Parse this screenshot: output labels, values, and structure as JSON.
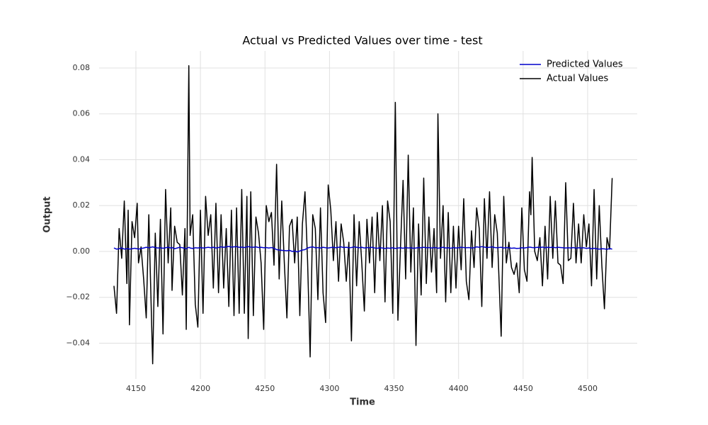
{
  "chart_data": {
    "type": "line",
    "title": "Actual vs Predicted Values over time - test",
    "xlabel": "Time",
    "ylabel": "Output",
    "x": [
      4133,
      4135,
      4137,
      4139,
      4141,
      4143,
      4144,
      4145,
      4147,
      4149,
      4151,
      4152,
      4154,
      4156,
      4158,
      4160,
      4163,
      4165,
      4167,
      4169,
      4171,
      4173,
      4175,
      4177,
      4178,
      4180,
      4182,
      4184,
      4186,
      4188,
      4189,
      4191,
      4192,
      4194,
      4196,
      4198,
      4200,
      4202,
      4204,
      4206,
      4208,
      4210,
      4212,
      4214,
      4216,
      4218,
      4220,
      4222,
      4224,
      4226,
      4228,
      4230,
      4232,
      4234,
      4236,
      4237,
      4239,
      4241,
      4243,
      4245,
      4247,
      4249,
      4251,
      4253,
      4255,
      4257,
      4259,
      4261,
      4263,
      4265,
      4267,
      4269,
      4271,
      4273,
      4275,
      4277,
      4279,
      4281,
      4283,
      4285,
      4287,
      4289,
      4291,
      4293,
      4295,
      4297,
      4299,
      4301,
      4303,
      4305,
      4307,
      4309,
      4311,
      4313,
      4315,
      4317,
      4319,
      4321,
      4323,
      4325,
      4327,
      4329,
      4331,
      4333,
      4335,
      4337,
      4339,
      4341,
      4343,
      4345,
      4347,
      4349,
      4351,
      4353,
      4355,
      4357,
      4359,
      4361,
      4363,
      4365,
      4367,
      4369,
      4371,
      4373,
      4375,
      4377,
      4379,
      4381,
      4383,
      4384,
      4386,
      4388,
      4390,
      4392,
      4394,
      4396,
      4398,
      4400,
      4402,
      4404,
      4406,
      4408,
      4410,
      4412,
      4414,
      4416,
      4418,
      4420,
      4422,
      4424,
      4426,
      4428,
      4430,
      4433,
      4435,
      4437,
      4439,
      4441,
      4443,
      4445,
      4447,
      4449,
      4451,
      4453,
      4455,
      4456,
      4457,
      4459,
      4461,
      4463,
      4465,
      4467,
      4469,
      4471,
      4473,
      4475,
      4477,
      4479,
      4481,
      4483,
      4485,
      4487,
      4489,
      4491,
      4493,
      4495,
      4497,
      4499,
      4501,
      4503,
      4505,
      4507,
      4509,
      4511,
      4513,
      4515,
      4517,
      4519
    ],
    "series": [
      {
        "name": "Predicted Values",
        "color": "#0000cc",
        "values": [
          0.0015,
          0.001,
          0.0012,
          0.0015,
          0.001,
          0.0012,
          0.0013,
          0.001,
          0.0012,
          0.0014,
          0.0012,
          0.001,
          0.0013,
          0.0015,
          0.0018,
          0.0016,
          0.002,
          0.0017,
          0.0015,
          0.0016,
          0.0014,
          0.0016,
          0.0018,
          0.0015,
          0.0017,
          0.0012,
          0.0015,
          0.0018,
          0.0016,
          0.0014,
          0.0012,
          0.0018,
          0.0015,
          0.0013,
          0.0016,
          0.0015,
          0.0017,
          0.0015,
          0.0016,
          0.0018,
          0.0016,
          0.0018,
          0.0015,
          0.0017,
          0.002,
          0.0018,
          0.002,
          0.0022,
          0.0019,
          0.002,
          0.0021,
          0.0018,
          0.0019,
          0.0017,
          0.002,
          0.0021,
          0.0019,
          0.0018,
          0.002,
          0.0017,
          0.0018,
          0.0016,
          0.0017,
          0.0015,
          0.0017,
          0.0014,
          0.0008,
          0.0006,
          0.0005,
          0.0004,
          0.0003,
          0.0005,
          0,
          0.0002,
          -0.0002,
          0.0002,
          0.0006,
          0.0008,
          0.0015,
          0.0018,
          0.002,
          0.0016,
          0.0017,
          0.0015,
          0.0018,
          0.0016,
          0.0015,
          0.0017,
          0.0018,
          0.0016,
          0.0018,
          0.002,
          0.0017,
          0.0018,
          0.0016,
          0.0017,
          0.002,
          0.0018,
          0.0016,
          0.0018,
          0.0015,
          0.0017,
          0.0016,
          0.0018,
          0.0015,
          0.0014,
          0.0016,
          0.0015,
          0.0013,
          0.0015,
          0.0014,
          0.0016,
          0.0013,
          0.0015,
          0.0016,
          0.0014,
          0.0017,
          0.0015,
          0.0016,
          0.0014,
          0.0015,
          0.0017,
          0.0016,
          0.0018,
          0.0016,
          0.0017,
          0.0015,
          0.0017,
          0.0016,
          0.0014,
          0.0016,
          0.0018,
          0.0015,
          0.0016,
          0.0014,
          0.0017,
          0.0015,
          0.0016,
          0.0018,
          0.0017,
          0.0016,
          0.0017,
          0.0015,
          0.0016,
          0.002,
          0.0018,
          0.0021,
          0.0019,
          0.0017,
          0.0018,
          0.002,
          0.0017,
          0.0016,
          0.0018,
          0.0015,
          0.0017,
          0.0016,
          0.0014,
          0.0015,
          0.0013,
          0.0014,
          0.0016,
          0.0015,
          0.0017,
          0.0019,
          0.0018,
          0.0017,
          0.0016,
          0.0018,
          0.0017,
          0.0019,
          0.0016,
          0.0018,
          0.0017,
          0.0019,
          0.0016,
          0.0018,
          0.0017,
          0.0016,
          0.0015,
          0.0016,
          0.0015,
          0.0017,
          0.0014,
          0.0016,
          0.0015,
          0.0016,
          0.0013,
          0.0015,
          0.0012,
          0.0014,
          0.0012,
          0.001,
          0.0012,
          0.0011,
          0.0009,
          0.0013,
          0.001
        ]
      },
      {
        "name": "Actual Values",
        "color": "#000000",
        "values": [
          -0.015,
          -0.027,
          0.01,
          -0.003,
          0.022,
          -0.014,
          0.018,
          -0.032,
          0.013,
          0.006,
          0.021,
          -0.005,
          0.002,
          -0.012,
          -0.029,
          0.016,
          -0.049,
          0.008,
          -0.024,
          0.014,
          -0.036,
          0.027,
          -0.005,
          0.019,
          -0.017,
          0.011,
          0.004,
          0.003,
          -0.019,
          0.01,
          -0.034,
          0.081,
          0.007,
          0.016,
          -0.023,
          -0.033,
          0.018,
          -0.027,
          0.024,
          0.007,
          0.016,
          -0.016,
          0.021,
          -0.018,
          0.016,
          -0.016,
          0.01,
          -0.024,
          0.018,
          -0.028,
          0.019,
          -0.027,
          0.027,
          -0.027,
          0.024,
          -0.038,
          0.026,
          -0.028,
          0.015,
          0.008,
          -0.005,
          -0.034,
          0.02,
          0.013,
          0.017,
          -0.006,
          0.038,
          -0.012,
          0.022,
          -0.005,
          -0.029,
          0.011,
          0.014,
          -0.005,
          0.015,
          -0.028,
          0.012,
          0.026,
          -0.004,
          -0.046,
          0.016,
          0.01,
          -0.021,
          0.019,
          -0.018,
          -0.031,
          0.029,
          0.018,
          -0.004,
          0.013,
          -0.013,
          0.012,
          0.004,
          -0.013,
          0.004,
          -0.039,
          0.016,
          -0.015,
          0.013,
          -0.005,
          -0.026,
          0.014,
          -0.005,
          0.015,
          -0.018,
          0.017,
          -0.004,
          0.02,
          -0.022,
          0.022,
          0.013,
          -0.027,
          0.065,
          -0.03,
          0.002,
          0.031,
          -0.012,
          0.042,
          -0.009,
          0.019,
          -0.041,
          0.012,
          -0.019,
          0.032,
          -0.014,
          0.015,
          -0.009,
          0.01,
          -0.018,
          0.06,
          -0.003,
          0.02,
          -0.022,
          0.017,
          -0.018,
          0.011,
          -0.016,
          0.011,
          -0.008,
          0.023,
          -0.013,
          -0.021,
          0.009,
          -0.007,
          0.019,
          0.01,
          -0.024,
          0.023,
          -0.003,
          0.026,
          -0.007,
          0.016,
          0.008,
          -0.037,
          0.024,
          -0.005,
          0.004,
          -0.007,
          -0.01,
          -0.005,
          -0.018,
          0.019,
          -0.008,
          -0.013,
          0.026,
          0.016,
          0.041,
          0.0,
          -0.004,
          0.006,
          -0.015,
          0.011,
          -0.012,
          0.024,
          -0.003,
          0.022,
          -0.005,
          -0.006,
          -0.014,
          0.03,
          -0.004,
          -0.003,
          0.021,
          -0.005,
          0.012,
          -0.005,
          0.016,
          0.002,
          0.012,
          -0.015,
          0.027,
          -0.012,
          0.02,
          -0.006,
          -0.025,
          0.006,
          0.001,
          0.032
        ]
      }
    ],
    "xlim": [
      4121.5,
      4538.4
    ],
    "ylim": [
      -0.0556,
      0.0874
    ],
    "xticks": [
      4150,
      4200,
      4250,
      4300,
      4350,
      4400,
      4450,
      4500
    ],
    "yticks": [
      {
        "value": -0.04,
        "label": "−0.04"
      },
      {
        "value": -0.02,
        "label": "−0.02"
      },
      {
        "value": 0,
        "label": "0.00"
      },
      0.02,
      0.04,
      0.06,
      0.08
    ],
    "grid": true,
    "legend": "upper right"
  }
}
